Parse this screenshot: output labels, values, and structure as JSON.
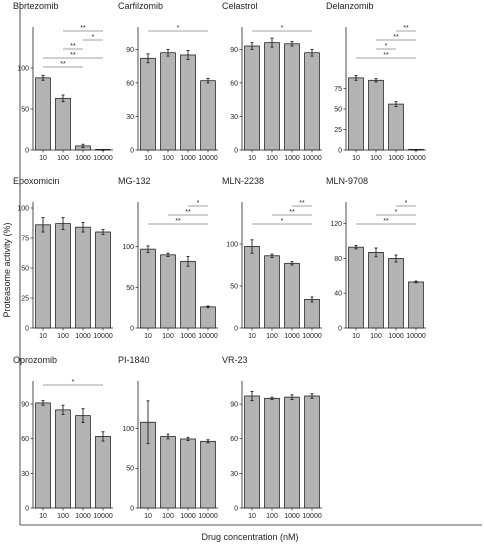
{
  "figure": {
    "ylabel": "Proteasome activity (%)",
    "xlabel": "Drug concentration (nM)"
  },
  "colors": {
    "bar_fill": "#b3b3b3",
    "bar_stroke": "#222222",
    "axis": "#222222",
    "bracket": "#444444"
  },
  "chart_data": [
    {
      "type": "bar",
      "title": "Bortezomib",
      "categories": [
        "10",
        "100",
        "1000",
        "10000"
      ],
      "values": [
        88,
        63,
        5,
        0
      ],
      "errors": [
        3,
        4,
        2,
        0.5
      ],
      "ylim": [
        0,
        150
      ],
      "yticks": [
        0,
        50,
        100
      ],
      "significance": [
        {
          "from": 1,
          "to": 3,
          "label": "**"
        },
        {
          "from": 2,
          "to": 3,
          "label": "*"
        },
        {
          "from": 1,
          "to": 2,
          "label": "**"
        },
        {
          "from": 0,
          "to": 3,
          "label": "**"
        },
        {
          "from": 0,
          "to": 2,
          "label": "**"
        }
      ]
    },
    {
      "type": "bar",
      "title": "Carfilzomib",
      "categories": [
        "10",
        "100",
        "1000",
        "10000"
      ],
      "values": [
        82,
        87,
        85,
        62
      ],
      "errors": [
        4,
        3,
        4,
        2
      ],
      "ylim": [
        0,
        110
      ],
      "yticks": [
        0,
        30,
        60,
        90
      ],
      "significance": [
        {
          "from": 0,
          "to": 3,
          "label": "*"
        }
      ]
    },
    {
      "type": "bar",
      "title": "Celastrol",
      "categories": [
        "10",
        "100",
        "1000",
        "10000"
      ],
      "values": [
        93,
        96,
        95,
        87
      ],
      "errors": [
        3,
        4,
        2,
        3
      ],
      "ylim": [
        0,
        110
      ],
      "yticks": [
        0,
        30,
        60,
        90
      ],
      "significance": [
        {
          "from": 0,
          "to": 3,
          "label": "*"
        }
      ]
    },
    {
      "type": "bar",
      "title": "Delanzomib",
      "categories": [
        "10",
        "100",
        "1000",
        "10000"
      ],
      "values": [
        88,
        85,
        56,
        0
      ],
      "errors": [
        3,
        2,
        3,
        0.5
      ],
      "ylim": [
        0,
        150
      ],
      "yticks": [
        0,
        25,
        50,
        75
      ],
      "significance": [
        {
          "from": 2,
          "to": 3,
          "label": "**"
        },
        {
          "from": 1,
          "to": 3,
          "label": "**"
        },
        {
          "from": 1,
          "to": 2,
          "label": "*"
        },
        {
          "from": 0,
          "to": 3,
          "label": "**"
        }
      ]
    },
    {
      "type": "bar",
      "title": "Epoxomicin",
      "categories": [
        "10",
        "100",
        "1000",
        "10000"
      ],
      "values": [
        86,
        87,
        84,
        80
      ],
      "errors": [
        6,
        5,
        4,
        2
      ],
      "ylim": [
        0,
        105
      ],
      "yticks": [
        0,
        25,
        50,
        75,
        100
      ],
      "significance": []
    },
    {
      "type": "bar",
      "title": "MG-132",
      "categories": [
        "10",
        "100",
        "1000",
        "10000"
      ],
      "values": [
        97,
        90,
        82,
        26
      ],
      "errors": [
        4,
        2,
        6,
        1
      ],
      "ylim": [
        0,
        155
      ],
      "yticks": [
        0,
        50,
        100
      ],
      "significance": [
        {
          "from": 2,
          "to": 3,
          "label": "*"
        },
        {
          "from": 1,
          "to": 3,
          "label": "**"
        },
        {
          "from": 0,
          "to": 3,
          "label": "**"
        }
      ]
    },
    {
      "type": "bar",
      "title": "MLN-2238",
      "categories": [
        "10",
        "100",
        "1000",
        "10000"
      ],
      "values": [
        97,
        86,
        77,
        34
      ],
      "errors": [
        8,
        2,
        2,
        3
      ],
      "ylim": [
        0,
        150
      ],
      "yticks": [
        0,
        50,
        100
      ],
      "significance": [
        {
          "from": 2,
          "to": 3,
          "label": "**"
        },
        {
          "from": 1,
          "to": 3,
          "label": "**"
        },
        {
          "from": 0,
          "to": 3,
          "label": "*"
        }
      ]
    },
    {
      "type": "bar",
      "title": "MLN-9708",
      "categories": [
        "10",
        "100",
        "1000",
        "10000"
      ],
      "values": [
        93,
        87,
        80,
        53
      ],
      "errors": [
        2,
        5,
        4,
        1
      ],
      "ylim": [
        0,
        145
      ],
      "yticks": [
        0,
        40,
        80,
        120
      ],
      "significance": [
        {
          "from": 2,
          "to": 3,
          "label": "*"
        },
        {
          "from": 1,
          "to": 3,
          "label": "*"
        },
        {
          "from": 0,
          "to": 3,
          "label": "**"
        }
      ]
    },
    {
      "type": "bar",
      "title": "Oprozomib",
      "categories": [
        "10",
        "100",
        "1000",
        "10000"
      ],
      "values": [
        91,
        85,
        80,
        62
      ],
      "errors": [
        2,
        4,
        6,
        4
      ],
      "ylim": [
        0,
        110
      ],
      "yticks": [
        0,
        30,
        60,
        90
      ],
      "significance": [
        {
          "from": 0,
          "to": 3,
          "label": "*"
        }
      ]
    },
    {
      "type": "bar",
      "title": "PI-1840",
      "categories": [
        "10",
        "100",
        "1000",
        "10000"
      ],
      "values": [
        108,
        90,
        87,
        84
      ],
      "errors": [
        27,
        3,
        2,
        2
      ],
      "ylim": [
        0,
        160
      ],
      "yticks": [
        0,
        50,
        100
      ],
      "significance": []
    },
    {
      "type": "bar",
      "title": "VR-23",
      "categories": [
        "10",
        "100",
        "1000",
        "10000"
      ],
      "values": [
        97,
        95,
        96,
        97
      ],
      "errors": [
        4,
        1,
        2,
        2
      ],
      "ylim": [
        0,
        110
      ],
      "yticks": [
        0,
        30,
        60,
        90
      ],
      "significance": []
    }
  ]
}
